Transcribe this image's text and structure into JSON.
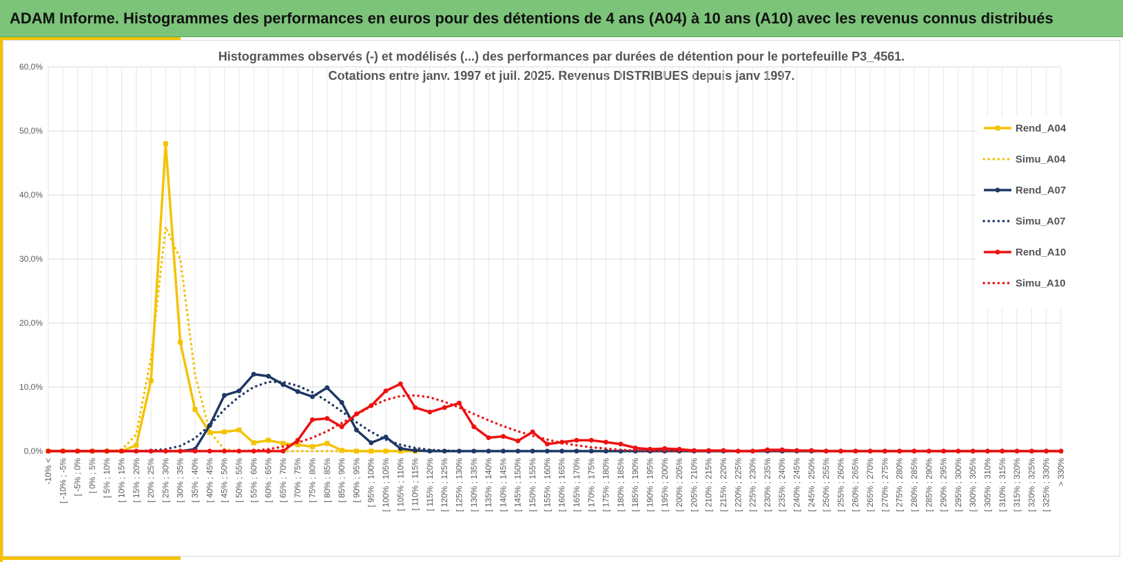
{
  "header": {
    "title": "ADAM Informe. Histogrammes des performances en euros pour des détentions de 4 ans (A04) à 10 ans (A10) avec les revenus connus distribués"
  },
  "colors": {
    "banner": "#7cc47a",
    "accent": "#f5c200",
    "A04": "#f5c200",
    "A07": "#1f3864",
    "A10": "#ee1111"
  },
  "chart_data": {
    "type": "line",
    "title": "Histogrammes observés (-) et modélisés (...) des performances par durées de détention pour le portefeuille P3_4561.",
    "subtitle": "Cotations entre janv. 1997 et juil. 2025. Revenus DISTRIBUES depuis janv 1997.",
    "ylim": [
      0,
      60
    ],
    "yticks": [
      "0,0%",
      "10,0%",
      "20,0%",
      "30,0%",
      "40,0%",
      "50,0%",
      "60,0%"
    ],
    "ytick_values": [
      0,
      10,
      20,
      30,
      40,
      50,
      60
    ],
    "legend_position": "right",
    "grid": true,
    "categories": [
      "-10% <",
      "[ -10% ; -5%",
      "[ -5% ; 0%",
      "[ 0% ; 5%",
      "[ 5% ; 10%",
      "[ 10% ; 15%",
      "[ 15% ; 20%",
      "[ 20% ; 25%",
      "[ 25% ; 30%",
      "[ 30% ; 35%",
      "[ 35% ; 40%",
      "[ 40% ; 45%",
      "[ 45% ; 50%",
      "[ 50% ; 55%",
      "[ 55% ; 60%",
      "[ 60% ; 65%",
      "[ 65% ; 70%",
      "[ 70% ; 75%",
      "[ 75% ; 80%",
      "[ 80% ; 85%",
      "[ 85% ; 90%",
      "[ 90% ; 95%",
      "[ 95% ; 100%",
      "[ 100% ; 105%",
      "[ 105% ; 110%",
      "[ 110% ; 115%",
      "[ 115% ; 120%",
      "[ 120% ; 125%",
      "[ 125% ; 130%",
      "[ 130% ; 135%",
      "[ 135% ; 140%",
      "[ 140% ; 145%",
      "[ 145% ; 150%",
      "[ 150% ; 155%",
      "[ 155% ; 160%",
      "[ 160% ; 165%",
      "[ 165% ; 170%",
      "[ 170% ; 175%",
      "[ 175% ; 180%",
      "[ 180% ; 185%",
      "[ 185% ; 190%",
      "[ 190% ; 195%",
      "[ 195% ; 200%",
      "[ 200% ; 205%",
      "[ 205% ; 210%",
      "[ 210% ; 215%",
      "[ 215% ; 220%",
      "[ 220% ; 225%",
      "[ 225% ; 230%",
      "[ 230% ; 235%",
      "[ 235% ; 240%",
      "[ 240% ; 245%",
      "[ 245% ; 250%",
      "[ 250% ; 255%",
      "[ 255% ; 260%",
      "[ 260% ; 265%",
      "[ 265% ; 270%",
      "[ 270% ; 275%",
      "[ 275% ; 280%",
      "[ 280% ; 285%",
      "[ 285% ; 290%",
      "[ 290% ; 295%",
      "[ 295% ; 300%",
      "[ 300% ; 305%",
      "[ 305% ; 310%",
      "[ 310% ; 315%",
      "[ 315% ; 320%",
      "[ 320% ; 325%",
      "[ 325% ; 330%",
      "> 330%"
    ],
    "series": [
      {
        "name": "Rend_A04",
        "style": "solid",
        "marker": "square",
        "color": "#f5c200",
        "values": [
          0,
          0,
          0,
          0,
          0,
          0,
          0.9,
          11,
          48,
          17,
          6.5,
          2.9,
          3,
          3.3,
          1.3,
          1.7,
          1.2,
          1,
          0.7,
          1.2,
          0.1,
          0,
          0,
          0,
          0,
          0,
          null,
          null,
          null,
          null,
          null,
          null,
          null,
          null,
          null,
          null,
          null,
          null,
          null,
          null,
          null,
          null,
          null,
          null,
          null,
          null,
          null,
          null,
          null,
          null,
          null,
          null,
          null,
          null,
          null,
          null,
          null,
          null,
          null,
          null,
          null,
          null,
          null,
          null,
          null,
          null,
          null,
          null,
          null,
          null
        ]
      },
      {
        "name": "Simu_A04",
        "style": "dotted",
        "marker": "none",
        "color": "#f5c200",
        "values": [
          0,
          0,
          0,
          0,
          0,
          0.2,
          2.6,
          14.5,
          35,
          30,
          12,
          3,
          0.3,
          0,
          0,
          0,
          0,
          0,
          0,
          0,
          0,
          0,
          0,
          0,
          0,
          0,
          0,
          0,
          0,
          0,
          0,
          0,
          0,
          0,
          0,
          0,
          0,
          0,
          0,
          0,
          0,
          0,
          0,
          0,
          0,
          0,
          0,
          0,
          0,
          0,
          0,
          0,
          0,
          0,
          0,
          0,
          0,
          0,
          0,
          0,
          0,
          0,
          0,
          0,
          0,
          0,
          0,
          0,
          0,
          0
        ]
      },
      {
        "name": "Rend_A07",
        "style": "solid",
        "marker": "circle",
        "color": "#1f3864",
        "values": [
          0,
          0,
          0,
          0,
          0,
          0,
          0,
          0,
          0,
          0,
          0.3,
          4,
          8.7,
          9.4,
          12,
          11.7,
          10.4,
          9.3,
          8.5,
          9.9,
          7.6,
          3.3,
          1.3,
          2.2,
          0.4,
          0.1,
          0,
          0,
          0,
          0,
          0,
          0,
          0,
          0,
          0,
          0,
          0,
          0,
          0,
          0,
          0,
          0,
          0,
          0,
          0,
          0,
          0,
          0,
          0,
          0,
          0,
          0,
          0,
          0,
          0,
          0,
          0,
          0,
          0,
          0,
          0,
          0,
          0,
          0,
          0,
          0,
          0,
          0,
          0,
          0
        ]
      },
      {
        "name": "Simu_A07",
        "style": "dotted",
        "marker": "none",
        "color": "#1f3864",
        "values": [
          0,
          0,
          0,
          0,
          0,
          0,
          0,
          0.1,
          0.3,
          0.8,
          2,
          4,
          6.5,
          8.5,
          10,
          10.8,
          10.8,
          10.2,
          9.2,
          7.8,
          6.2,
          4.5,
          3,
          1.8,
          1,
          0.5,
          0.2,
          0.1,
          0,
          0,
          0,
          0,
          0,
          0,
          0,
          0,
          0,
          0,
          0,
          0,
          0,
          0,
          0,
          0,
          0,
          0,
          0,
          0,
          0,
          0,
          0,
          0,
          0,
          0,
          0,
          0,
          0,
          0,
          0,
          0,
          0,
          0,
          0,
          0,
          0,
          0,
          0,
          0,
          0,
          0
        ]
      },
      {
        "name": "Rend_A10",
        "style": "solid",
        "marker": "circle",
        "color": "#ee1111",
        "values": [
          0,
          0,
          0,
          0,
          0,
          0,
          0,
          0,
          0,
          0,
          0,
          0,
          0,
          0,
          0,
          0,
          0,
          1.7,
          4.9,
          5.1,
          3.8,
          5.8,
          7.1,
          9.4,
          10.5,
          6.8,
          6.1,
          6.8,
          7.5,
          3.8,
          2.1,
          2.3,
          1.6,
          3,
          1.1,
          1.4,
          1.7,
          1.7,
          1.4,
          1.1,
          0.5,
          0.3,
          0.4,
          0.3,
          0.1,
          0.1,
          0.1,
          0,
          0,
          0.2,
          0.2,
          0.1,
          0.1,
          0,
          0,
          0,
          0,
          0,
          0,
          0,
          0,
          0,
          0,
          0,
          0,
          0,
          0,
          0,
          0,
          0
        ]
      },
      {
        "name": "Simu_A10",
        "style": "dotted",
        "marker": "none",
        "color": "#ee1111",
        "values": [
          0,
          0,
          0,
          0,
          0,
          0,
          0,
          0,
          0,
          0,
          0,
          0,
          0,
          0,
          0.1,
          0.3,
          0.7,
          1.3,
          2.1,
          3.1,
          4.4,
          5.7,
          7,
          8,
          8.6,
          8.7,
          8.4,
          7.7,
          6.8,
          5.8,
          4.8,
          3.9,
          3.1,
          2.4,
          1.8,
          1.3,
          0.9,
          0.6,
          0.4,
          0.2,
          0.1,
          0.1,
          0,
          0,
          0,
          0,
          0,
          0,
          0,
          0,
          0,
          0,
          0,
          0,
          0,
          0,
          0,
          0,
          0,
          0,
          0,
          0,
          0,
          0,
          0,
          0,
          0,
          0,
          0,
          0
        ]
      }
    ]
  }
}
